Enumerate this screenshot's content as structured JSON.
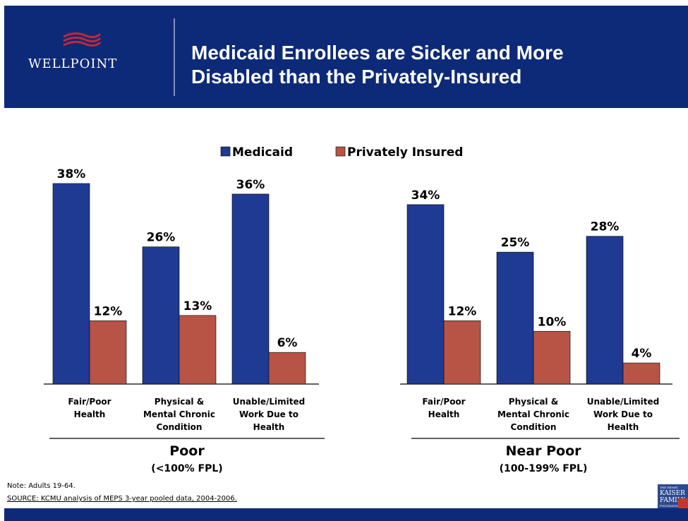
{
  "slide": {
    "logo_text": "WELLPOINT",
    "title_line1": "Medicaid Enrollees are Sicker and More",
    "title_line2": "Disabled than the Privately-Insured",
    "note": "Note: Adults 19-64.",
    "source": "SOURCE: KCMU analysis of MEPS 3-year pooled data, 2004-2006.",
    "kff_logo_lines": [
      "THE HENRY",
      "KAISER",
      "FAMILY",
      "FOUNDATION"
    ],
    "colors": {
      "header": "#0d2a78",
      "logo_red": "#c0273a"
    }
  },
  "chart_data": {
    "type": "bar",
    "title": "",
    "xlabel": "",
    "ylabel": "",
    "ylim": [
      0,
      40
    ],
    "grid": false,
    "legend_placement": "top-center",
    "groups": [
      {
        "name": "Poor",
        "sub": "(<100% FPL)",
        "categories": [
          [
            "Fair/Poor",
            "Health"
          ],
          [
            "Physical &",
            "Mental Chronic",
            "Condition"
          ],
          [
            "Unable/Limited",
            "Work Due to",
            "Health"
          ]
        ]
      },
      {
        "name": "Near Poor",
        "sub": "(100-199% FPL)",
        "categories": [
          [
            "Fair/Poor",
            "Health"
          ],
          [
            "Physical &",
            "Mental Chronic",
            "Condition"
          ],
          [
            "Unable/Limited",
            "Work Due to",
            "Health"
          ]
        ]
      }
    ],
    "series": [
      {
        "name": "Medicaid",
        "color": "#1f3a93",
        "values": [
          38,
          26,
          36,
          34,
          25,
          28
        ],
        "labels": [
          "38%",
          "26%",
          "36%",
          "34%",
          "25%",
          "28%"
        ]
      },
      {
        "name": "Privately Insured",
        "color": "#b85445",
        "values": [
          12,
          13,
          6,
          12,
          10,
          4
        ],
        "labels": [
          "12%",
          "13%",
          "6%",
          "12%",
          "10%",
          "4%"
        ]
      }
    ]
  }
}
